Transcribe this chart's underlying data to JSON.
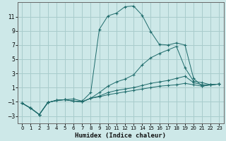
{
  "xlabel": "Humidex (Indice chaleur)",
  "bg_color": "#cde8e8",
  "grid_color": "#a8cccc",
  "line_color": "#1e6b6b",
  "spine_color": "#666666",
  "xlim": [
    -0.5,
    23.5
  ],
  "ylim": [
    -4.0,
    13.0
  ],
  "xticks": [
    0,
    1,
    2,
    3,
    4,
    5,
    6,
    7,
    8,
    9,
    10,
    11,
    12,
    13,
    14,
    15,
    16,
    17,
    18,
    19,
    20,
    21,
    22,
    23
  ],
  "yticks": [
    -3,
    -1,
    1,
    3,
    5,
    7,
    9,
    11
  ],
  "series": [
    {
      "x": [
        0,
        1,
        2,
        3,
        4,
        5,
        6,
        7,
        8,
        9,
        10,
        11,
        12,
        13,
        14,
        15,
        16,
        17,
        18,
        19,
        20,
        21,
        22,
        23
      ],
      "y": [
        -1.2,
        -1.9,
        -2.8,
        -1.1,
        -0.8,
        -0.7,
        -0.6,
        -0.9,
        0.3,
        9.2,
        11.1,
        11.5,
        12.4,
        12.5,
        11.2,
        8.9,
        7.1,
        7.0,
        7.3,
        7.0,
        2.3,
        1.2,
        1.4,
        1.5
      ]
    },
    {
      "x": [
        0,
        1,
        2,
        3,
        4,
        5,
        6,
        7,
        8,
        9,
        10,
        11,
        12,
        13,
        14,
        15,
        16,
        17,
        18,
        19,
        20,
        21,
        22,
        23
      ],
      "y": [
        -1.2,
        -1.9,
        -2.8,
        -1.1,
        -0.8,
        -0.7,
        -0.9,
        -1.0,
        -0.5,
        0.3,
        1.2,
        1.8,
        2.2,
        2.8,
        4.2,
        5.2,
        5.8,
        6.3,
        6.8,
        3.8,
        1.9,
        1.7,
        1.4,
        1.5
      ]
    },
    {
      "x": [
        0,
        1,
        2,
        3,
        4,
        5,
        6,
        7,
        8,
        9,
        10,
        11,
        12,
        13,
        14,
        15,
        16,
        17,
        18,
        19,
        20,
        21,
        22,
        23
      ],
      "y": [
        -1.2,
        -1.9,
        -2.8,
        -1.1,
        -0.8,
        -0.7,
        -0.9,
        -1.0,
        -0.5,
        -0.2,
        0.3,
        0.6,
        0.8,
        1.0,
        1.3,
        1.6,
        1.8,
        2.0,
        2.3,
        2.6,
        1.7,
        1.4,
        1.4,
        1.5
      ]
    },
    {
      "x": [
        0,
        1,
        2,
        3,
        4,
        5,
        6,
        7,
        8,
        9,
        10,
        11,
        12,
        13,
        14,
        15,
        16,
        17,
        18,
        19,
        20,
        21,
        22,
        23
      ],
      "y": [
        -1.2,
        -1.9,
        -2.8,
        -1.1,
        -0.8,
        -0.7,
        -0.9,
        -1.0,
        -0.5,
        -0.3,
        0.0,
        0.2,
        0.4,
        0.6,
        0.8,
        1.0,
        1.2,
        1.3,
        1.4,
        1.6,
        1.4,
        1.2,
        1.4,
        1.5
      ]
    }
  ],
  "xlabel_fontsize": 6.5,
  "xlabel_bold": true,
  "tick_fontsize": 5.5,
  "xtick_fontsize": 5.0
}
